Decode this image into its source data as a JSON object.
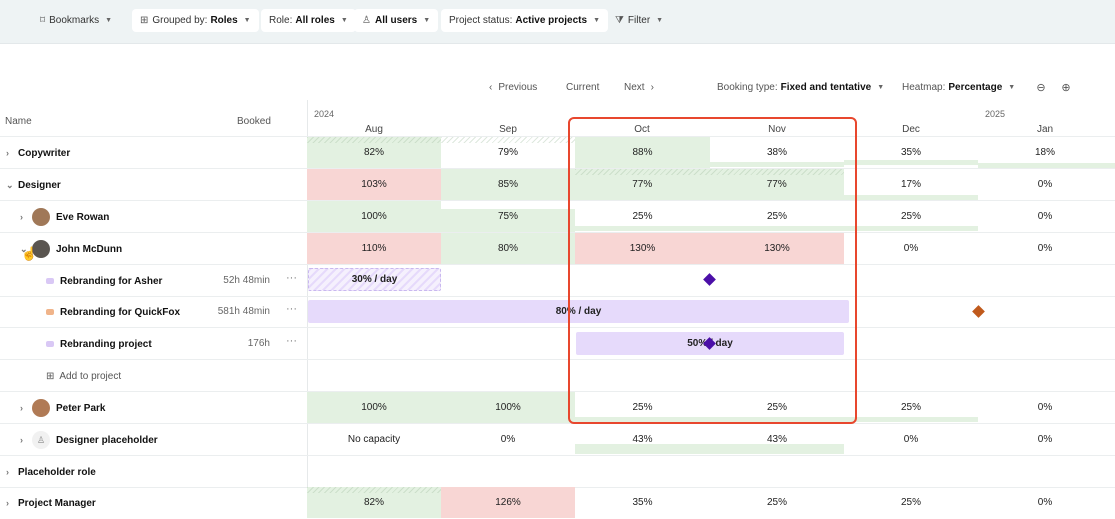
{
  "toolbar": {
    "bookmarks": "Bookmarks",
    "grouped_label": "Grouped by:",
    "grouped_value": "Roles",
    "role_label": "Role:",
    "role_value": "All roles",
    "users_value": "All users",
    "status_label": "Project status:",
    "status_value": "Active projects",
    "filter": "Filter"
  },
  "nav": {
    "previous": "Previous",
    "current": "Current",
    "next": "Next",
    "booking_label": "Booking type:",
    "booking_value": "Fixed and tentative",
    "heatmap_label": "Heatmap:",
    "heatmap_value": "Percentage"
  },
  "columns": {
    "name": "Name",
    "booked": "Booked"
  },
  "years": [
    "2024",
    "2025"
  ],
  "months": [
    "Aug",
    "Sep",
    "Oct",
    "Nov",
    "Dec",
    "Jan"
  ],
  "rows": [
    {
      "name": "Copywriter",
      "cells": [
        "82%",
        "79%",
        "88%",
        "38%",
        "35%",
        "18%"
      ]
    },
    {
      "name": "Designer",
      "cells": [
        "103%",
        "85%",
        "77%",
        "77%",
        "17%",
        "0%"
      ]
    },
    {
      "name": "Eve Rowan",
      "cells": [
        "100%",
        "75%",
        "25%",
        "25%",
        "25%",
        "0%"
      ]
    },
    {
      "name": "John McDunn",
      "cells": [
        "110%",
        "80%",
        "130%",
        "130%",
        "0%",
        "0%"
      ]
    },
    {
      "name": "Rebranding for Asher",
      "booked": "52h 48min",
      "bar": "30% / day"
    },
    {
      "name": "Rebranding for QuickFox",
      "booked": "581h 48min",
      "bar": "80% / day"
    },
    {
      "name": "Rebranding project",
      "booked": "176h",
      "bar": "50% / day"
    },
    {
      "name": "Add to project"
    },
    {
      "name": "Peter Park",
      "cells": [
        "100%",
        "100%",
        "25%",
        "25%",
        "25%",
        "0%"
      ]
    },
    {
      "name": "Designer placeholder",
      "cells": [
        "No capacity",
        "0%",
        "43%",
        "43%",
        "0%",
        "0%"
      ]
    },
    {
      "name": "Placeholder role"
    },
    {
      "name": "Project Manager",
      "cells": [
        "82%",
        "126%",
        "35%",
        "25%",
        "25%",
        "0%"
      ]
    }
  ],
  "colors": {
    "green": "#e3f1e1",
    "red": "#f8d6d4",
    "purple": "#e6dafb",
    "diamond_purple": "#4b0fa8",
    "diamond_orange": "#c05a1c",
    "highlight": "#e8472e"
  }
}
